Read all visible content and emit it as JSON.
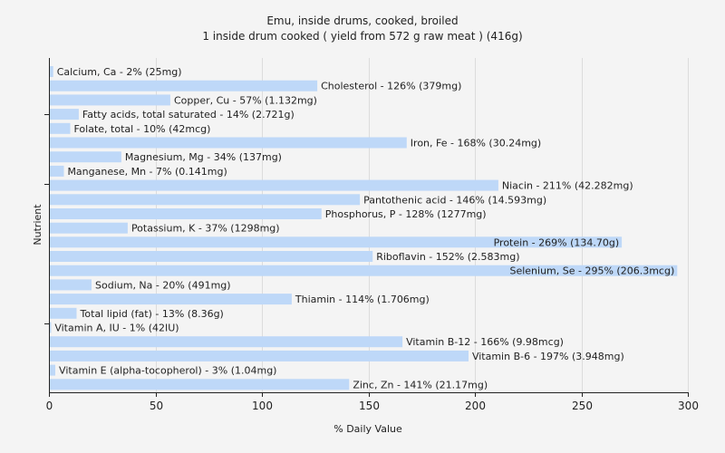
{
  "chart_data": {
    "type": "bar",
    "orientation": "horizontal",
    "title": "Emu, inside drums, cooked, broiled",
    "subtitle": "1 inside drum cooked ( yield from 572 g raw meat ) (416g)",
    "xlabel": "% Daily Value",
    "ylabel": "Nutrient",
    "xlim": [
      0,
      300
    ],
    "xticks": [
      0,
      50,
      100,
      150,
      200,
      250,
      300
    ],
    "grid": true,
    "bar_color": "#bed8f8",
    "categories": [
      "Calcium, Ca",
      "Cholesterol",
      "Copper, Cu",
      "Fatty acids, total saturated",
      "Folate, total",
      "Iron, Fe",
      "Magnesium, Mg",
      "Manganese, Mn",
      "Niacin",
      "Pantothenic acid",
      "Phosphorus, P",
      "Potassium, K",
      "Protein",
      "Riboflavin",
      "Selenium, Se",
      "Sodium, Na",
      "Thiamin",
      "Total lipid (fat)",
      "Vitamin A, IU",
      "Vitamin B-12",
      "Vitamin B-6",
      "Vitamin E (alpha-tocopherol)",
      "Zinc, Zn"
    ],
    "values": [
      2,
      126,
      57,
      14,
      10,
      168,
      34,
      7,
      211,
      146,
      128,
      37,
      269,
      152,
      295,
      20,
      114,
      13,
      1,
      166,
      197,
      3,
      141
    ],
    "labels": [
      "Calcium, Ca - 2% (25mg)",
      "Cholesterol - 126% (379mg)",
      "Copper, Cu - 57% (1.132mg)",
      "Fatty acids, total saturated - 14% (2.721g)",
      "Folate, total - 10% (42mcg)",
      "Iron, Fe - 168% (30.24mg)",
      "Magnesium, Mg - 34% (137mg)",
      "Manganese, Mn - 7% (0.141mg)",
      "Niacin - 211% (42.282mg)",
      "Pantothenic acid - 146% (14.593mg)",
      "Phosphorus, P - 128% (1277mg)",
      "Potassium, K - 37% (1298mg)",
      "Protein - 269% (134.70g)",
      "Riboflavin - 152% (2.583mg)",
      "Selenium, Se - 295% (206.3mcg)",
      "Sodium, Na - 20% (491mg)",
      "Thiamin - 114% (1.706mg)",
      "Total lipid (fat) - 13% (8.36g)",
      "Vitamin A, IU - 1% (42IU)",
      "Vitamin B-12 - 166% (9.98mcg)",
      "Vitamin B-6 - 197% (3.948mg)",
      "Vitamin E (alpha-tocopherol) - 3% (1.04mg)",
      "Zinc, Zn - 141% (21.17mg)"
    ]
  }
}
